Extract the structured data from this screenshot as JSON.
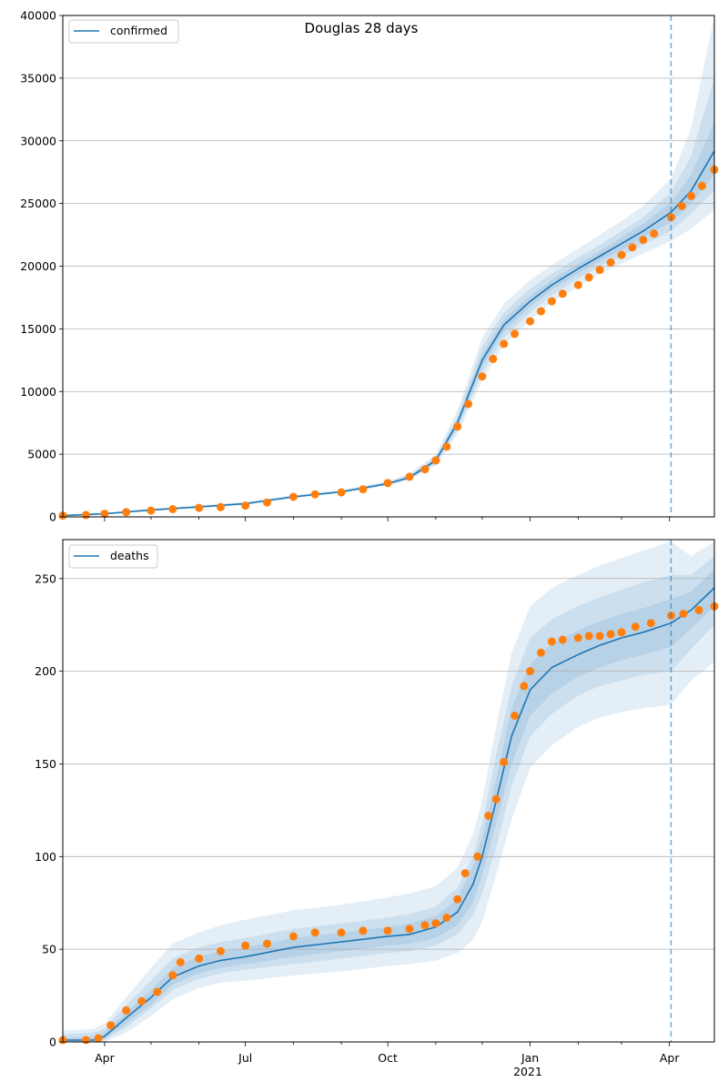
{
  "figure_title": "Douglas 28 days",
  "x_ticks": {
    "labels": [
      "Apr",
      "Jul",
      "Oct",
      "Jan",
      "Apr"
    ],
    "year_label": "2021"
  },
  "colors": {
    "model_line": "#1f77b4",
    "observed_points": "#ff7f0e",
    "band": "#1f77b4",
    "forecast_line": "#1f77b4",
    "grid": "#b0b0b0"
  },
  "chart_data": [
    {
      "type": "line",
      "legend": "confirmed",
      "legend_position": "top-left",
      "grid": "horizontal",
      "x_range": [
        "2020-03-05",
        "2021-04-30"
      ],
      "ylim": [
        0,
        40000
      ],
      "y_ticks": [
        0,
        5000,
        10000,
        15000,
        20000,
        25000,
        30000,
        35000,
        40000
      ],
      "forecast_start": "2021-04-02",
      "model": {
        "x": [
          "2020-03-05",
          "2020-04-01",
          "2020-05-01",
          "2020-06-01",
          "2020-07-01",
          "2020-08-01",
          "2020-09-01",
          "2020-10-01",
          "2020-10-15",
          "2020-11-01",
          "2020-11-15",
          "2020-12-01",
          "2020-12-15",
          "2021-01-01",
          "2021-01-15",
          "2021-02-01",
          "2021-02-15",
          "2021-03-01",
          "2021-03-15",
          "2021-04-02",
          "2021-04-15",
          "2021-04-30"
        ],
        "y": [
          100,
          250,
          550,
          800,
          1050,
          1600,
          2000,
          2650,
          3150,
          4500,
          7500,
          12500,
          15300,
          17200,
          18500,
          19800,
          20800,
          21800,
          22800,
          24300,
          26000,
          29200
        ]
      },
      "bands": [
        {
          "lower": [
            70,
            200,
            470,
            700,
            950,
            1500,
            1900,
            2500,
            2950,
            4100,
            6600,
            10900,
            13700,
            15700,
            17100,
            18400,
            19400,
            20200,
            21000,
            22000,
            23000,
            24500
          ],
          "upper": [
            150,
            320,
            650,
            920,
            1200,
            1750,
            2150,
            2850,
            3450,
            5000,
            8500,
            14300,
            17000,
            18900,
            20100,
            21400,
            22500,
            23600,
            24800,
            27000,
            31000,
            40000
          ]
        },
        {
          "lower": [
            80,
            215,
            490,
            720,
            975,
            1525,
            1925,
            2550,
            3000,
            4250,
            6950,
            11500,
            14300,
            16300,
            17700,
            19000,
            20000,
            20800,
            21700,
            22800,
            24200,
            26000
          ],
          "upper": [
            130,
            290,
            610,
            880,
            1150,
            1700,
            2100,
            2780,
            3350,
            4800,
            8050,
            13600,
            16300,
            18200,
            19400,
            20700,
            21700,
            22800,
            23900,
            25900,
            28800,
            35000
          ]
        },
        {
          "lower": [
            90,
            230,
            510,
            750,
            1010,
            1560,
            1960,
            2600,
            3070,
            4380,
            7250,
            12000,
            14800,
            16750,
            18100,
            19400,
            20400,
            21300,
            22300,
            23500,
            25000,
            27300
          ],
          "upper": [
            115,
            270,
            590,
            850,
            1100,
            1650,
            2050,
            2720,
            3250,
            4650,
            7800,
            13000,
            15800,
            17650,
            18900,
            20200,
            21200,
            22300,
            23400,
            25100,
            27300,
            31500
          ]
        }
      ],
      "observed": {
        "x": [
          "2020-03-05",
          "2020-03-20",
          "2020-04-01",
          "2020-04-15",
          "2020-05-01",
          "2020-05-15",
          "2020-06-01",
          "2020-06-15",
          "2020-07-01",
          "2020-07-15",
          "2020-08-01",
          "2020-08-15",
          "2020-09-01",
          "2020-09-15",
          "2020-10-01",
          "2020-10-15",
          "2020-10-25",
          "2020-11-01",
          "2020-11-08",
          "2020-11-15",
          "2020-11-22",
          "2020-12-01",
          "2020-12-08",
          "2020-12-15",
          "2020-12-22",
          "2021-01-01",
          "2021-01-08",
          "2021-01-15",
          "2021-01-22",
          "2021-02-01",
          "2021-02-08",
          "2021-02-15",
          "2021-02-22",
          "2021-03-01",
          "2021-03-08",
          "2021-03-15",
          "2021-03-22",
          "2021-04-02",
          "2021-04-09",
          "2021-04-15",
          "2021-04-22",
          "2021-04-30"
        ],
        "y": [
          100,
          150,
          250,
          380,
          500,
          620,
          720,
          780,
          900,
          1150,
          1600,
          1800,
          1950,
          2200,
          2700,
          3200,
          3800,
          4500,
          5600,
          7200,
          9000,
          11200,
          12600,
          13800,
          14600,
          15600,
          16400,
          17200,
          17800,
          18500,
          19100,
          19700,
          20300,
          20900,
          21500,
          22100,
          22600,
          23900,
          24800,
          25600,
          26400,
          27700
        ]
      }
    },
    {
      "type": "line",
      "legend": "deaths",
      "legend_position": "top-left",
      "grid": "horizontal",
      "x_range": [
        "2020-03-05",
        "2021-04-30"
      ],
      "ylim": [
        0,
        271
      ],
      "y_ticks": [
        0,
        50,
        100,
        150,
        200,
        250
      ],
      "forecast_start": "2021-04-02",
      "model": {
        "x": [
          "2020-03-05",
          "2020-03-25",
          "2020-04-01",
          "2020-04-15",
          "2020-05-01",
          "2020-05-15",
          "2020-06-01",
          "2020-06-15",
          "2020-07-01",
          "2020-08-01",
          "2020-09-01",
          "2020-10-01",
          "2020-10-15",
          "2020-11-01",
          "2020-11-15",
          "2020-11-25",
          "2020-12-01",
          "2020-12-10",
          "2020-12-20",
          "2021-01-01",
          "2021-01-15",
          "2021-02-01",
          "2021-02-15",
          "2021-03-01",
          "2021-03-15",
          "2021-04-02",
          "2021-04-15",
          "2021-04-30"
        ],
        "y": [
          1,
          1,
          3,
          13,
          24,
          35,
          41,
          44,
          46,
          51,
          54,
          57,
          58,
          62,
          70,
          85,
          100,
          130,
          165,
          190,
          202,
          209,
          214,
          218,
          221,
          226,
          233,
          245
        ]
      },
      "bands": [
        {
          "lower": [
            0,
            0,
            0,
            5,
            14,
            23,
            29,
            32,
            33,
            36,
            38,
            41,
            42,
            44,
            48,
            55,
            65,
            90,
            120,
            148,
            160,
            170,
            175,
            178,
            180,
            182,
            195,
            205
          ],
          "upper": [
            6,
            7,
            10,
            24,
            40,
            53,
            59,
            63,
            66,
            71,
            74,
            78,
            80,
            84,
            94,
            112,
            130,
            170,
            210,
            235,
            245,
            252,
            257,
            261,
            265,
            270,
            262,
            270
          ]
        },
        {
          "lower": [
            0,
            0,
            1,
            8,
            18,
            28,
            34,
            37,
            39,
            42,
            45,
            48,
            49,
            52,
            58,
            68,
            80,
            105,
            138,
            165,
            177,
            187,
            192,
            195,
            198,
            200,
            212,
            225
          ],
          "upper": [
            4,
            5,
            7,
            20,
            33,
            45,
            51,
            54,
            56,
            61,
            64,
            67,
            69,
            73,
            83,
            100,
            118,
            155,
            192,
            218,
            228,
            235,
            240,
            244,
            248,
            252,
            252,
            262
          ]
        },
        {
          "lower": [
            0,
            0,
            2,
            10,
            20,
            31,
            37,
            40,
            42,
            46,
            49,
            52,
            53,
            56,
            63,
            75,
            90,
            118,
            150,
            176,
            188,
            197,
            202,
            206,
            209,
            213,
            223,
            235
          ],
          "upper": [
            2,
            3,
            5,
            16,
            28,
            40,
            46,
            49,
            51,
            56,
            59,
            62,
            64,
            68,
            77,
            95,
            110,
            142,
            180,
            204,
            215,
            222,
            227,
            231,
            234,
            239,
            243,
            255
          ]
        }
      ],
      "observed": {
        "x": [
          "2020-03-05",
          "2020-03-20",
          "2020-03-28",
          "2020-04-05",
          "2020-04-15",
          "2020-04-25",
          "2020-05-05",
          "2020-05-15",
          "2020-05-20",
          "2020-06-01",
          "2020-06-15",
          "2020-07-01",
          "2020-07-15",
          "2020-08-01",
          "2020-08-15",
          "2020-09-01",
          "2020-09-15",
          "2020-10-01",
          "2020-10-15",
          "2020-10-25",
          "2020-11-01",
          "2020-11-08",
          "2020-11-15",
          "2020-11-20",
          "2020-11-28",
          "2020-12-05",
          "2020-12-10",
          "2020-12-15",
          "2020-12-22",
          "2020-12-28",
          "2021-01-01",
          "2021-01-08",
          "2021-01-15",
          "2021-01-22",
          "2021-02-01",
          "2021-02-08",
          "2021-02-15",
          "2021-02-22",
          "2021-03-01",
          "2021-03-10",
          "2021-03-20",
          "2021-04-02",
          "2021-04-10",
          "2021-04-20",
          "2021-04-30"
        ],
        "y": [
          1,
          1,
          2,
          9,
          17,
          22,
          27,
          36,
          43,
          45,
          49,
          52,
          53,
          57,
          59,
          59,
          60,
          60,
          61,
          63,
          64,
          67,
          77,
          91,
          100,
          122,
          131,
          151,
          176,
          192,
          200,
          210,
          216,
          217,
          218,
          219,
          219,
          220,
          221,
          224,
          226,
          230,
          231,
          233,
          235
        ]
      }
    }
  ]
}
